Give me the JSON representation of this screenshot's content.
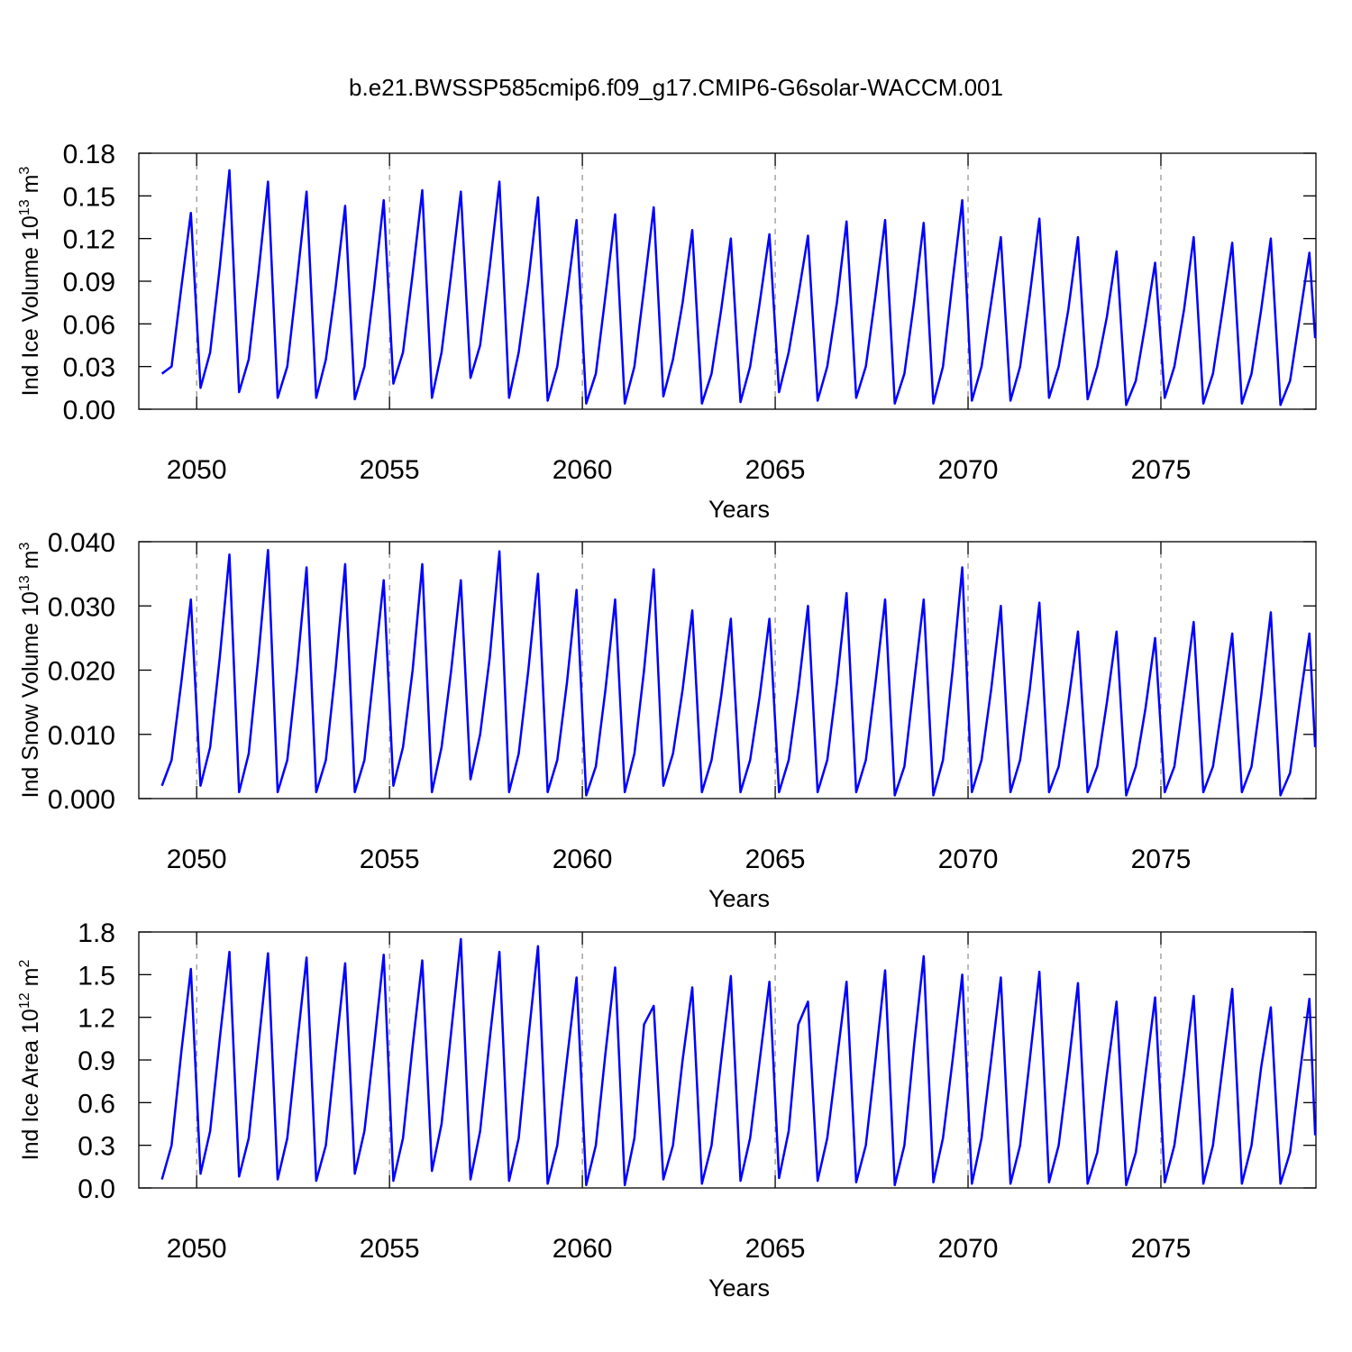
{
  "title": "b.e21.BWSSP585cmip6.f09_g17.CMIP6-G6solar-WACCM.001",
  "chart_data": [
    {
      "type": "line",
      "x_label": "Years",
      "y_label": {
        "text": "Ind Ice Volume 10",
        "exponent": "13",
        "unit": "m",
        "unit_exponent": "3"
      },
      "xlim": [
        2048.5,
        2079.02
      ],
      "xticks": [
        2050,
        2055,
        2060,
        2065,
        2070,
        2075
      ],
      "ylim": [
        0,
        0.18
      ],
      "yticks": [
        {
          "value": 0,
          "label": "0.00"
        },
        0.03,
        0.06,
        0.09,
        0.12,
        0.15,
        0.18
      ],
      "grid": true,
      "x": [
        2049.1,
        2049.35,
        2049.6,
        2049.85,
        2050.1,
        2050.35,
        2050.6,
        2050.85,
        2051.1,
        2051.35,
        2051.6,
        2051.85,
        2052.1,
        2052.35,
        2052.6,
        2052.85,
        2053.1,
        2053.35,
        2053.6,
        2053.85,
        2054.1,
        2054.35,
        2054.6,
        2054.85,
        2055.1,
        2055.35,
        2055.6,
        2055.85,
        2056.1,
        2056.35,
        2056.6,
        2056.85,
        2057.1,
        2057.35,
        2057.6,
        2057.85,
        2058.1,
        2058.35,
        2058.6,
        2058.85,
        2059.1,
        2059.35,
        2059.6,
        2059.85,
        2060.1,
        2060.35,
        2060.6,
        2060.85,
        2061.1,
        2061.35,
        2061.6,
        2061.85,
        2062.1,
        2062.35,
        2062.6,
        2062.85,
        2063.1,
        2063.35,
        2063.6,
        2063.85,
        2064.1,
        2064.35,
        2064.6,
        2064.85,
        2065.1,
        2065.35,
        2065.6,
        2065.85,
        2066.1,
        2066.35,
        2066.6,
        2066.85,
        2067.1,
        2067.35,
        2067.6,
        2067.85,
        2068.1,
        2068.35,
        2068.6,
        2068.85,
        2069.1,
        2069.35,
        2069.6,
        2069.85,
        2070.1,
        2070.35,
        2070.6,
        2070.85,
        2071.1,
        2071.35,
        2071.6,
        2071.85,
        2072.1,
        2072.35,
        2072.6,
        2072.85,
        2073.1,
        2073.35,
        2073.6,
        2073.85,
        2074.1,
        2074.35,
        2074.6,
        2074.85,
        2075.1,
        2075.35,
        2075.6,
        2075.85,
        2076.1,
        2076.35,
        2076.6,
        2076.85,
        2077.1,
        2077.35,
        2077.6,
        2077.85,
        2078.1,
        2078.35,
        2078.6,
        2078.85,
        2079.0
      ],
      "series": [
        {
          "color": "#0000ff",
          "values": [
            0.025,
            0.03,
            0.085,
            0.138,
            0.015,
            0.04,
            0.1,
            0.168,
            0.012,
            0.035,
            0.095,
            0.16,
            0.008,
            0.03,
            0.09,
            0.153,
            0.008,
            0.035,
            0.085,
            0.143,
            0.007,
            0.03,
            0.085,
            0.147,
            0.018,
            0.04,
            0.095,
            0.154,
            0.008,
            0.04,
            0.095,
            0.153,
            0.022,
            0.045,
            0.1,
            0.16,
            0.008,
            0.04,
            0.09,
            0.149,
            0.006,
            0.03,
            0.08,
            0.133,
            0.004,
            0.025,
            0.08,
            0.137,
            0.004,
            0.03,
            0.085,
            0.142,
            0.009,
            0.035,
            0.075,
            0.126,
            0.004,
            0.025,
            0.07,
            0.12,
            0.005,
            0.03,
            0.075,
            0.123,
            0.012,
            0.04,
            0.08,
            0.122,
            0.006,
            0.03,
            0.075,
            0.132,
            0.008,
            0.03,
            0.08,
            0.133,
            0.004,
            0.025,
            0.075,
            0.131,
            0.004,
            0.03,
            0.09,
            0.147,
            0.006,
            0.03,
            0.075,
            0.121,
            0.006,
            0.03,
            0.08,
            0.134,
            0.008,
            0.03,
            0.07,
            0.121,
            0.007,
            0.03,
            0.065,
            0.111,
            0.003,
            0.02,
            0.06,
            0.103,
            0.008,
            0.03,
            0.07,
            0.121,
            0.004,
            0.025,
            0.07,
            0.117,
            0.004,
            0.025,
            0.07,
            0.12,
            0.003,
            0.02,
            0.065,
            0.11,
            0.05
          ]
        }
      ]
    },
    {
      "type": "line",
      "x_label": "Years",
      "y_label": {
        "text": "Ind Snow Volume 10",
        "exponent": "13",
        "unit": "m",
        "unit_exponent": "3"
      },
      "xlim": [
        2048.5,
        2079.02
      ],
      "xticks": [
        2050,
        2055,
        2060,
        2065,
        2070,
        2075
      ],
      "ylim": [
        0,
        0.04
      ],
      "yticks": [
        {
          "value": 0,
          "label": "0.000"
        },
        {
          "value": 0.01,
          "label": "0.010"
        },
        {
          "value": 0.02,
          "label": "0.020"
        },
        {
          "value": 0.03,
          "label": "0.030"
        },
        {
          "value": 0.04,
          "label": "0.040"
        }
      ],
      "grid": true,
      "x": [
        2049.1,
        2049.35,
        2049.6,
        2049.85,
        2050.1,
        2050.35,
        2050.6,
        2050.85,
        2051.1,
        2051.35,
        2051.6,
        2051.85,
        2052.1,
        2052.35,
        2052.6,
        2052.85,
        2053.1,
        2053.35,
        2053.6,
        2053.85,
        2054.1,
        2054.35,
        2054.6,
        2054.85,
        2055.1,
        2055.35,
        2055.6,
        2055.85,
        2056.1,
        2056.35,
        2056.6,
        2056.85,
        2057.1,
        2057.35,
        2057.6,
        2057.85,
        2058.1,
        2058.35,
        2058.6,
        2058.85,
        2059.1,
        2059.35,
        2059.6,
        2059.85,
        2060.1,
        2060.35,
        2060.6,
        2060.85,
        2061.1,
        2061.35,
        2061.6,
        2061.85,
        2062.1,
        2062.35,
        2062.6,
        2062.85,
        2063.1,
        2063.35,
        2063.6,
        2063.85,
        2064.1,
        2064.35,
        2064.6,
        2064.85,
        2065.1,
        2065.35,
        2065.6,
        2065.85,
        2066.1,
        2066.35,
        2066.6,
        2066.85,
        2067.1,
        2067.35,
        2067.6,
        2067.85,
        2068.1,
        2068.35,
        2068.6,
        2068.85,
        2069.1,
        2069.35,
        2069.6,
        2069.85,
        2070.1,
        2070.35,
        2070.6,
        2070.85,
        2071.1,
        2071.35,
        2071.6,
        2071.85,
        2072.1,
        2072.35,
        2072.6,
        2072.85,
        2073.1,
        2073.35,
        2073.6,
        2073.85,
        2074.1,
        2074.35,
        2074.6,
        2074.85,
        2075.1,
        2075.35,
        2075.6,
        2075.85,
        2076.1,
        2076.35,
        2076.6,
        2076.85,
        2077.1,
        2077.35,
        2077.6,
        2077.85,
        2078.1,
        2078.35,
        2078.6,
        2078.85,
        2079.0
      ],
      "series": [
        {
          "color": "#0000ff",
          "values": [
            0.002,
            0.006,
            0.018,
            0.031,
            0.002,
            0.008,
            0.022,
            0.038,
            0.001,
            0.007,
            0.022,
            0.0387,
            0.001,
            0.006,
            0.02,
            0.036,
            0.001,
            0.006,
            0.02,
            0.0365,
            0.001,
            0.006,
            0.02,
            0.034,
            0.002,
            0.008,
            0.02,
            0.0365,
            0.001,
            0.008,
            0.02,
            0.034,
            0.003,
            0.01,
            0.022,
            0.0385,
            0.001,
            0.007,
            0.02,
            0.035,
            0.001,
            0.006,
            0.018,
            0.0325,
            0.0005,
            0.005,
            0.017,
            0.031,
            0.001,
            0.007,
            0.02,
            0.0357,
            0.002,
            0.007,
            0.017,
            0.0293,
            0.001,
            0.006,
            0.016,
            0.028,
            0.001,
            0.006,
            0.016,
            0.028,
            0.001,
            0.006,
            0.017,
            0.03,
            0.001,
            0.006,
            0.018,
            0.032,
            0.001,
            0.006,
            0.018,
            0.031,
            0.0005,
            0.005,
            0.018,
            0.031,
            0.0005,
            0.006,
            0.02,
            0.036,
            0.001,
            0.006,
            0.017,
            0.03,
            0.001,
            0.006,
            0.017,
            0.0305,
            0.001,
            0.005,
            0.015,
            0.026,
            0.001,
            0.005,
            0.015,
            0.026,
            0.0005,
            0.005,
            0.014,
            0.025,
            0.001,
            0.005,
            0.016,
            0.0275,
            0.001,
            0.005,
            0.015,
            0.0257,
            0.001,
            0.005,
            0.016,
            0.029,
            0.0005,
            0.004,
            0.015,
            0.0257,
            0.008
          ]
        }
      ]
    },
    {
      "type": "line",
      "x_label": "Years",
      "y_label": {
        "text": "Ind Ice Area 10",
        "exponent": "12",
        "unit": "m",
        "unit_exponent": "2"
      },
      "xlim": [
        2048.5,
        2079.02
      ],
      "xticks": [
        2050,
        2055,
        2060,
        2065,
        2070,
        2075
      ],
      "ylim": [
        0,
        1.8
      ],
      "yticks": [
        {
          "value": 0,
          "label": "0.0"
        },
        0.3,
        0.6,
        0.9,
        1.2,
        1.5,
        1.8
      ],
      "grid": true,
      "x": [
        2049.1,
        2049.35,
        2049.6,
        2049.85,
        2050.1,
        2050.35,
        2050.6,
        2050.85,
        2051.1,
        2051.35,
        2051.6,
        2051.85,
        2052.1,
        2052.35,
        2052.6,
        2052.85,
        2053.1,
        2053.35,
        2053.6,
        2053.85,
        2054.1,
        2054.35,
        2054.6,
        2054.85,
        2055.1,
        2055.35,
        2055.6,
        2055.85,
        2056.1,
        2056.35,
        2056.6,
        2056.85,
        2057.1,
        2057.35,
        2057.6,
        2057.85,
        2058.1,
        2058.35,
        2058.6,
        2058.85,
        2059.1,
        2059.35,
        2059.6,
        2059.85,
        2060.1,
        2060.35,
        2060.6,
        2060.85,
        2061.1,
        2061.35,
        2061.6,
        2061.85,
        2062.1,
        2062.35,
        2062.6,
        2062.85,
        2063.1,
        2063.35,
        2063.6,
        2063.85,
        2064.1,
        2064.35,
        2064.6,
        2064.85,
        2065.1,
        2065.35,
        2065.6,
        2065.85,
        2066.1,
        2066.35,
        2066.6,
        2066.85,
        2067.1,
        2067.35,
        2067.6,
        2067.85,
        2068.1,
        2068.35,
        2068.6,
        2068.85,
        2069.1,
        2069.35,
        2069.6,
        2069.85,
        2070.1,
        2070.35,
        2070.6,
        2070.85,
        2071.1,
        2071.35,
        2071.6,
        2071.85,
        2072.1,
        2072.35,
        2072.6,
        2072.85,
        2073.1,
        2073.35,
        2073.6,
        2073.85,
        2074.1,
        2074.35,
        2074.6,
        2074.85,
        2075.1,
        2075.35,
        2075.6,
        2075.85,
        2076.1,
        2076.35,
        2076.6,
        2076.85,
        2077.1,
        2077.35,
        2077.6,
        2077.85,
        2078.1,
        2078.35,
        2078.6,
        2078.85,
        2079.0
      ],
      "series": [
        {
          "color": "#0000ff",
          "values": [
            0.06,
            0.3,
            0.95,
            1.54,
            0.1,
            0.4,
            1.05,
            1.66,
            0.08,
            0.35,
            1.0,
            1.65,
            0.06,
            0.35,
            1.0,
            1.62,
            0.05,
            0.3,
            0.95,
            1.58,
            0.1,
            0.4,
            1.0,
            1.64,
            0.05,
            0.35,
            1.0,
            1.6,
            0.12,
            0.45,
            1.1,
            1.75,
            0.06,
            0.4,
            1.05,
            1.66,
            0.05,
            0.35,
            1.05,
            1.7,
            0.03,
            0.3,
            0.9,
            1.48,
            0.02,
            0.3,
            0.95,
            1.55,
            0.02,
            0.35,
            1.15,
            1.28,
            0.06,
            0.3,
            0.9,
            1.41,
            0.03,
            0.3,
            0.9,
            1.49,
            0.05,
            0.35,
            0.9,
            1.45,
            0.07,
            0.4,
            1.15,
            1.31,
            0.05,
            0.35,
            0.9,
            1.45,
            0.04,
            0.3,
            0.9,
            1.53,
            0.02,
            0.3,
            1.0,
            1.63,
            0.04,
            0.35,
            0.9,
            1.5,
            0.03,
            0.35,
            0.9,
            1.48,
            0.03,
            0.3,
            0.9,
            1.52,
            0.04,
            0.3,
            0.85,
            1.44,
            0.03,
            0.25,
            0.8,
            1.31,
            0.02,
            0.25,
            0.8,
            1.34,
            0.04,
            0.3,
            0.8,
            1.35,
            0.03,
            0.3,
            0.85,
            1.4,
            0.03,
            0.3,
            0.85,
            1.27,
            0.03,
            0.25,
            0.8,
            1.33,
            0.37
          ]
        }
      ]
    }
  ]
}
